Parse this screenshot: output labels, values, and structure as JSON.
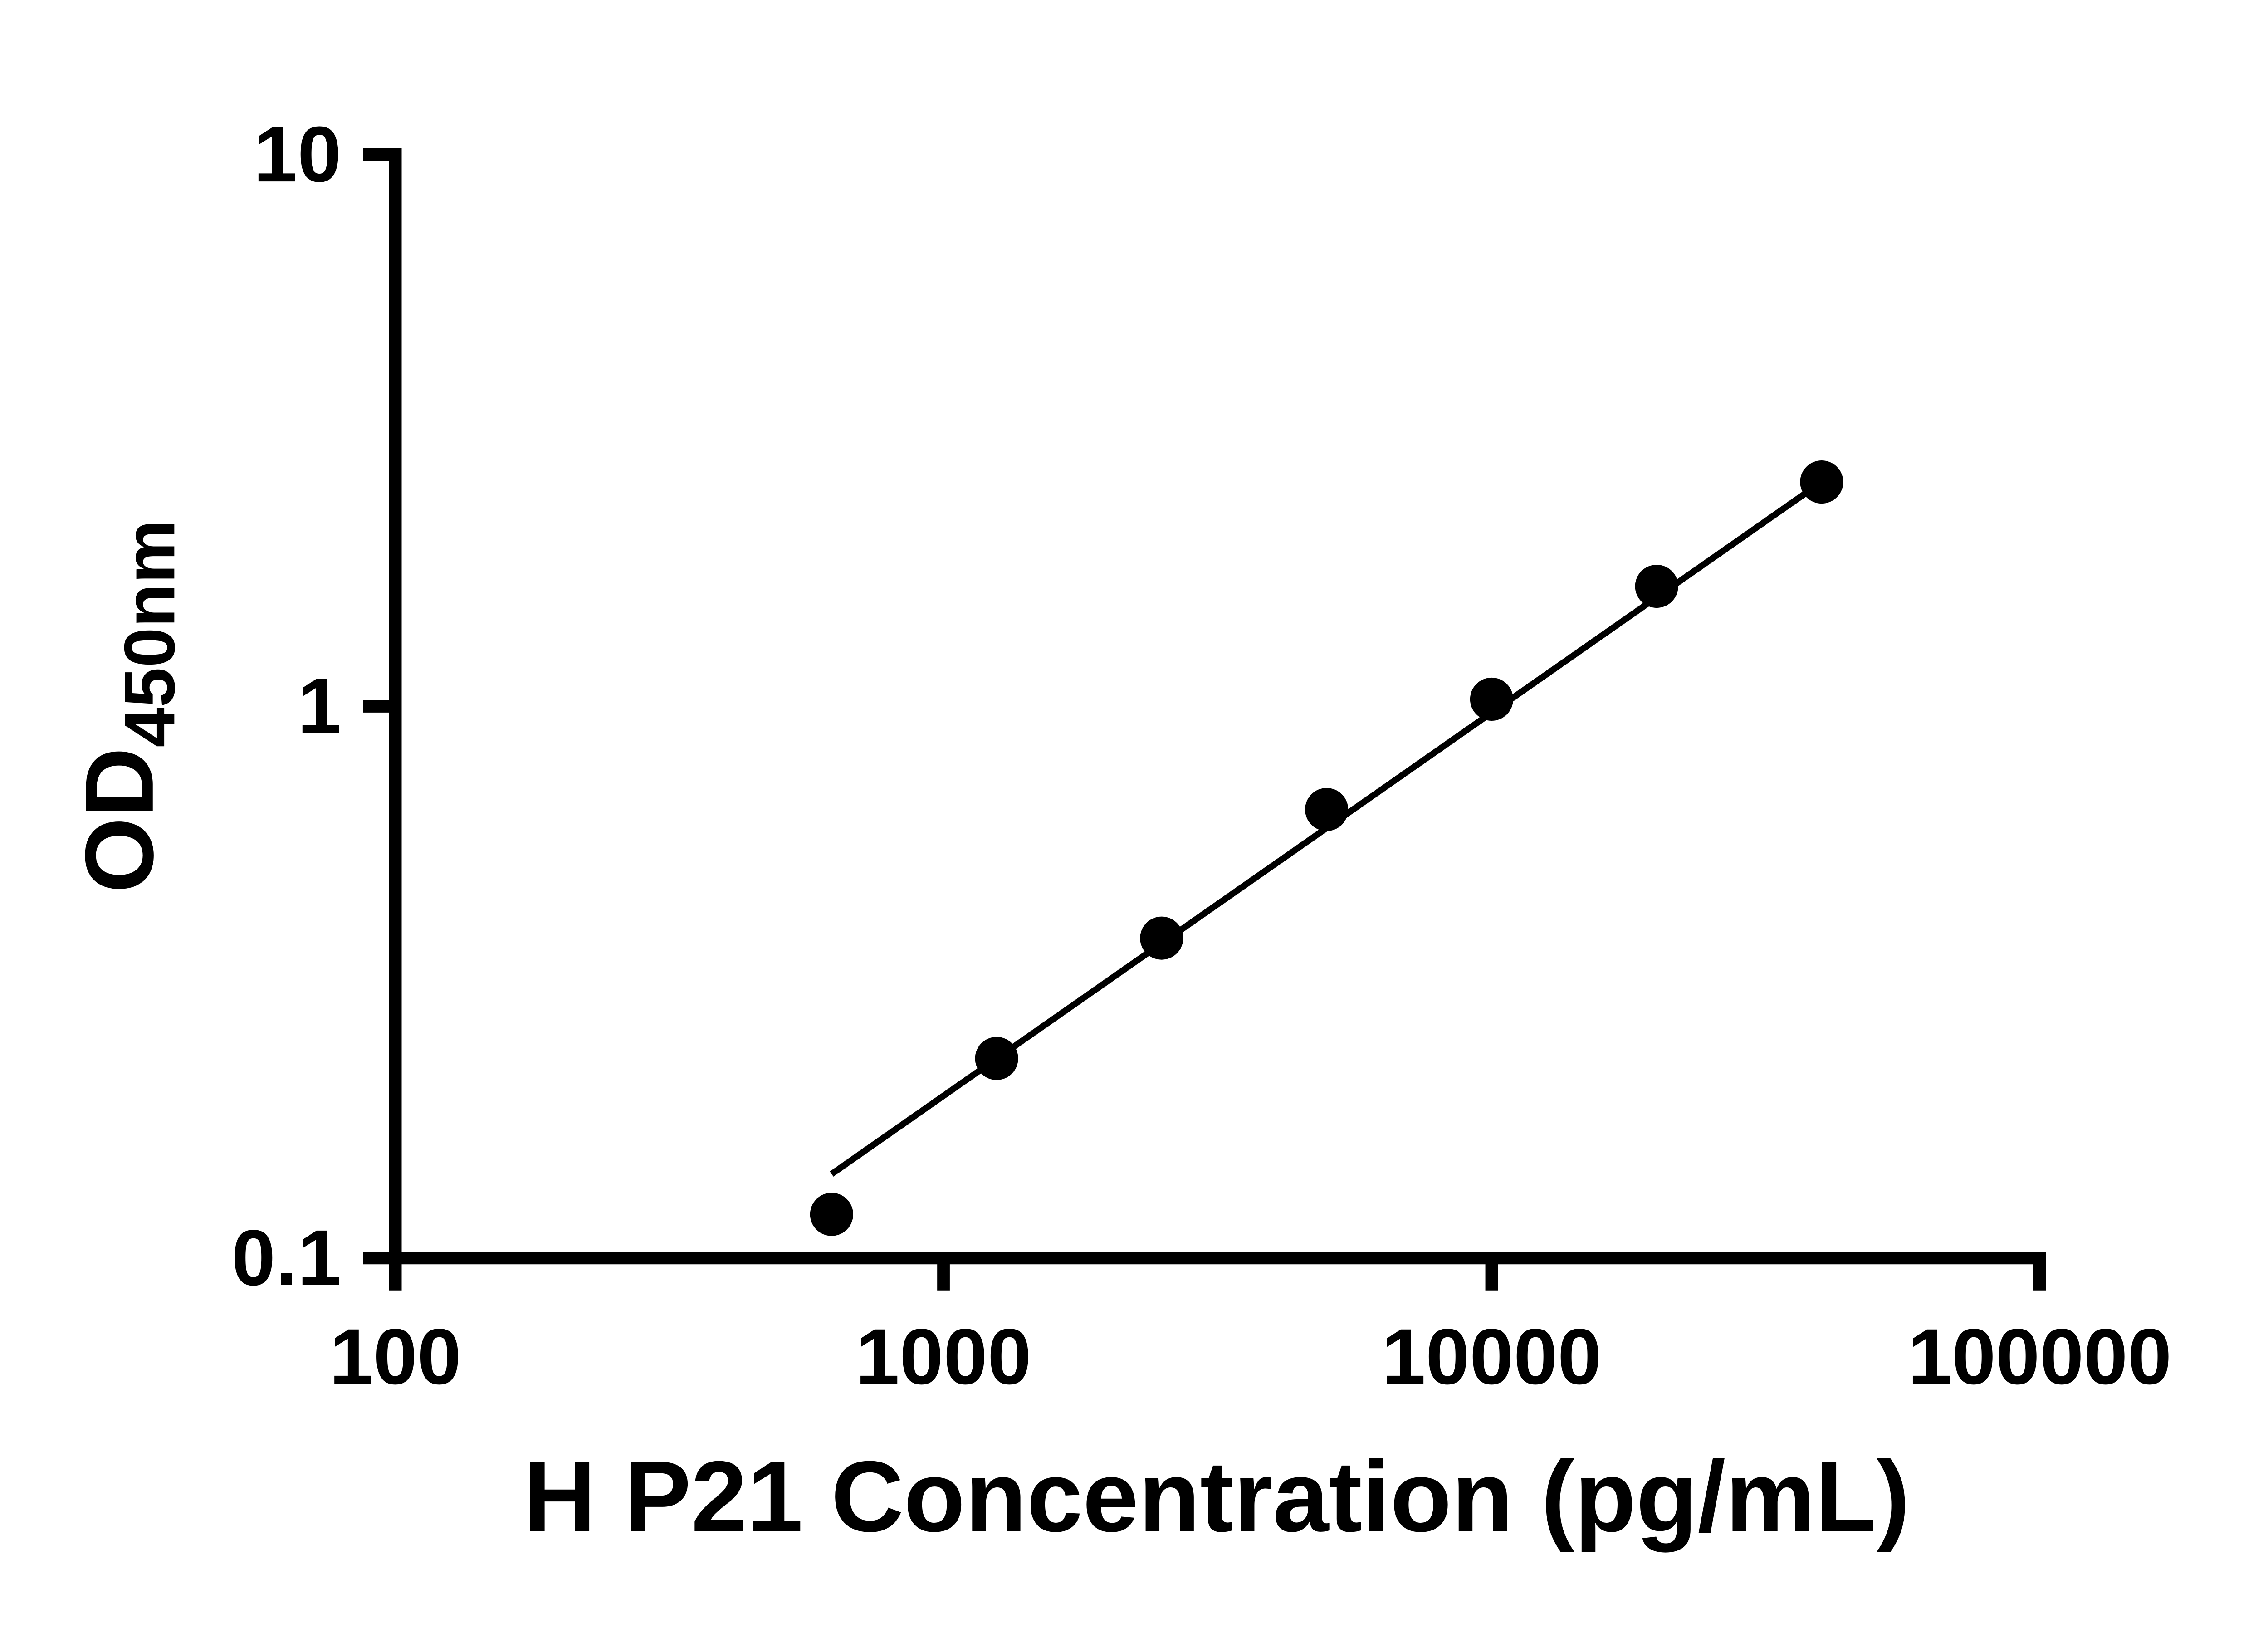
{
  "chart_data": {
    "type": "scatter",
    "title": "",
    "xlabel": "H P21 Concentration (pg/mL)",
    "ylabel_main": "OD",
    "ylabel_sub": "450nm",
    "x_scale": "log",
    "y_scale": "log",
    "xlim": [
      100,
      100000
    ],
    "ylim": [
      0.1,
      10
    ],
    "x_ticks": [
      100,
      1000,
      10000,
      100000
    ],
    "x_tick_labels": [
      "100",
      "1000",
      "10000",
      "100000"
    ],
    "y_ticks": [
      0.1,
      1,
      10
    ],
    "y_tick_labels": [
      "0.1",
      "1",
      "10"
    ],
    "points": [
      {
        "x": 625,
        "y": 0.12
      },
      {
        "x": 1250,
        "y": 0.23
      },
      {
        "x": 2500,
        "y": 0.38
      },
      {
        "x": 5000,
        "y": 0.65
      },
      {
        "x": 10000,
        "y": 1.03
      },
      {
        "x": 20000,
        "y": 1.65
      },
      {
        "x": 40000,
        "y": 2.55
      }
    ],
    "trendline": {
      "x1": 625,
      "y1": 0.142,
      "x2": 40000,
      "y2": 2.55
    },
    "marker_color": "#000000",
    "line_color": "#000000",
    "axis_color": "#000000",
    "grid": false,
    "legend": false
  }
}
